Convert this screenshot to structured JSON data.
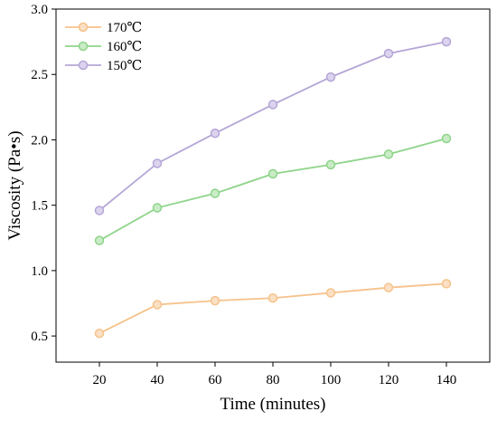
{
  "chart_data": {
    "type": "line",
    "title": "",
    "xlabel": "Time (minutes)",
    "ylabel": "Viscosity (Pa•s)",
    "x": [
      20,
      40,
      60,
      80,
      100,
      120,
      140
    ],
    "xlim": [
      5,
      155
    ],
    "ylim": [
      0.3,
      3.0
    ],
    "xticks": [
      "20",
      "40",
      "60",
      "80",
      "100",
      "120",
      "140"
    ],
    "yticks": [
      "0.5",
      "1.0",
      "1.5",
      "2.0",
      "2.5",
      "3.0"
    ],
    "grid": false,
    "legend_position": "top-left",
    "series": [
      {
        "name": "170℃",
        "color": "#F6C28B",
        "marker_fill": "#FBE0C4",
        "values": [
          0.52,
          0.74,
          0.77,
          0.79,
          0.83,
          0.87,
          0.9
        ]
      },
      {
        "name": "160℃",
        "color": "#8ED48A",
        "marker_fill": "#C9ECC6",
        "values": [
          1.23,
          1.48,
          1.59,
          1.74,
          1.81,
          1.89,
          2.01
        ]
      },
      {
        "name": "150℃",
        "color": "#B4A6D6",
        "marker_fill": "#DCD4EE",
        "values": [
          1.46,
          1.82,
          2.05,
          2.27,
          2.48,
          2.66,
          2.75
        ]
      }
    ]
  }
}
